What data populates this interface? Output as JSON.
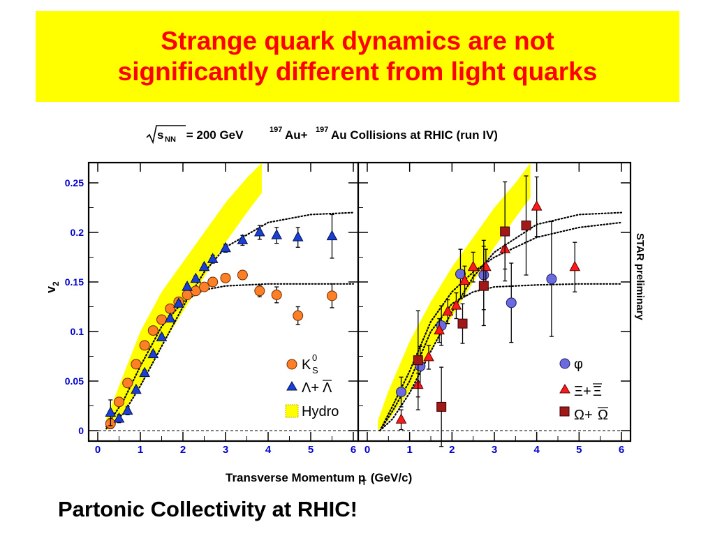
{
  "slide": {
    "title_line1": "Strange quark dynamics are not",
    "title_line2": "significantly different from light quarks",
    "footer": "Partonic Collectivity at RHIC!"
  },
  "colors": {
    "title_bg": "#ffff00",
    "title_text": "#ff0000",
    "tick_label": "#0000cc",
    "hydro": "#ffff00",
    "k0s": "#ff7f27",
    "lambda": "#1a3fd6",
    "phi": "#6b6bdf",
    "xi": "#ff1a1a",
    "omega": "#a01818"
  },
  "chart_data": [
    {
      "type": "scatter",
      "panel": "left",
      "header": {
        "sqrt_symbol": "√",
        "s": "s",
        "nn_sub": "NN",
        "energy": " = 200 GeV ",
        "mass_num": "197",
        "au": "Au+",
        "mass_num2": "197",
        "rest": "Au Collisions at RHIC (run IV)"
      },
      "xlabel_main": "Transverse Momentum p",
      "xlabel_sub": "T",
      "xlabel_unit": " (GeV/c)",
      "ylabel_main": "v",
      "ylabel_sub": "2",
      "xlim": [
        0,
        6
      ],
      "ylim": [
        -0.005,
        0.27
      ],
      "x_ticks": [
        "0",
        "1",
        "2",
        "3",
        "4",
        "5",
        "6"
      ],
      "y_ticks": [
        "0",
        "0.05",
        "0.1",
        "0.15",
        "0.2",
        "0.25"
      ],
      "hydro_band": {
        "x": [
          0.2,
          0.5,
          1.0,
          1.5,
          2.0,
          2.5,
          3.0,
          3.5,
          3.85
        ],
        "lower": [
          0.0,
          0.012,
          0.045,
          0.085,
          0.12,
          0.155,
          0.19,
          0.22,
          0.24
        ],
        "upper": [
          0.012,
          0.045,
          0.1,
          0.14,
          0.17,
          0.2,
          0.23,
          0.255,
          0.27
        ]
      },
      "fit_curves": [
        {
          "x": [
            0.2,
            0.6,
            1.0,
            1.5,
            2.0,
            2.5,
            3.0,
            4.0,
            5.0,
            6.0
          ],
          "y": [
            0.004,
            0.03,
            0.065,
            0.105,
            0.13,
            0.142,
            0.146,
            0.148,
            0.148,
            0.148
          ]
        },
        {
          "x": [
            0.2,
            0.6,
            1.0,
            1.5,
            2.0,
            2.5,
            3.0,
            4.0,
            5.0,
            6.0
          ],
          "y": [
            0.002,
            0.017,
            0.045,
            0.085,
            0.125,
            0.16,
            0.185,
            0.21,
            0.218,
            0.22
          ]
        }
      ],
      "series": [
        {
          "name": "K<sup>0</sup><sub>S</sub>",
          "legend_text": "K",
          "legend_sup": "0",
          "legend_sub": "S",
          "marker": "circle",
          "x": [
            0.3,
            0.5,
            0.7,
            0.9,
            1.1,
            1.3,
            1.5,
            1.7,
            1.9,
            2.1,
            2.3,
            2.5,
            2.7,
            3.0,
            3.4,
            3.8,
            4.2,
            4.7,
            5.5
          ],
          "y": [
            0.007,
            0.029,
            0.048,
            0.067,
            0.086,
            0.101,
            0.112,
            0.123,
            0.13,
            0.137,
            0.141,
            0.145,
            0.15,
            0.154,
            0.157,
            0.141,
            0.137,
            0.116,
            0.136
          ],
          "err": [
            0.005,
            0.004,
            0.004,
            0.003,
            0.003,
            0.003,
            0.003,
            0.003,
            0.003,
            0.003,
            0.003,
            0.003,
            0.003,
            0.003,
            0.004,
            0.006,
            0.008,
            0.009,
            0.012
          ]
        },
        {
          "name": "Λ+Λ̄",
          "legend_text": "Λ+",
          "legend_bar": "Λ",
          "marker": "triangle",
          "x": [
            0.3,
            0.5,
            0.7,
            0.9,
            1.1,
            1.3,
            1.5,
            1.7,
            1.9,
            2.1,
            2.3,
            2.5,
            2.7,
            3.0,
            3.4,
            3.8,
            4.2,
            4.7,
            5.5
          ],
          "y": [
            0.018,
            0.012,
            0.02,
            0.041,
            0.058,
            0.077,
            0.094,
            0.113,
            0.128,
            0.145,
            0.153,
            0.165,
            0.173,
            0.184,
            0.192,
            0.2,
            0.197,
            0.195,
            0.196
          ],
          "err": [
            0.013,
            0.004,
            0.004,
            0.003,
            0.003,
            0.003,
            0.003,
            0.003,
            0.003,
            0.003,
            0.003,
            0.003,
            0.004,
            0.004,
            0.005,
            0.007,
            0.008,
            0.01,
            0.022
          ]
        },
        {
          "name": "Hydro",
          "legend_text": "Hydro",
          "marker": "band"
        }
      ]
    },
    {
      "type": "scatter",
      "panel": "right",
      "side_label": "STAR preliminary",
      "xlim": [
        0,
        6
      ],
      "ylim": [
        -0.005,
        0.27
      ],
      "x_ticks": [
        "0",
        "1",
        "2",
        "3",
        "4",
        "5",
        "6"
      ],
      "hydro_band": {
        "x": [
          0.25,
          0.5,
          1.0,
          1.5,
          2.0,
          2.5,
          3.0,
          3.5,
          3.85
        ],
        "lower": [
          0.0,
          0.01,
          0.04,
          0.08,
          0.115,
          0.15,
          0.185,
          0.215,
          0.235
        ],
        "upper": [
          0.01,
          0.04,
          0.09,
          0.13,
          0.165,
          0.195,
          0.225,
          0.25,
          0.27
        ]
      },
      "fit_curves": [
        {
          "x": [
            0.3,
            0.6,
            1.0,
            1.5,
            2.0,
            2.5,
            3.0,
            4.0,
            5.0,
            6.0
          ],
          "y": [
            0.0,
            0.02,
            0.05,
            0.1,
            0.128,
            0.14,
            0.145,
            0.147,
            0.148,
            0.148
          ]
        },
        {
          "x": [
            0.3,
            0.6,
            1.0,
            1.5,
            2.0,
            2.5,
            3.0,
            4.0,
            5.0,
            6.0
          ],
          "y": [
            0.0,
            0.012,
            0.038,
            0.08,
            0.12,
            0.155,
            0.18,
            0.208,
            0.218,
            0.22
          ]
        },
        {
          "x": [
            0.3,
            0.6,
            1.0,
            1.5,
            2.0,
            2.5,
            3.0,
            4.0,
            5.0,
            6.0
          ],
          "y": [
            0.0,
            0.025,
            0.06,
            0.11,
            0.14,
            0.16,
            0.175,
            0.195,
            0.205,
            0.21
          ]
        }
      ],
      "series": [
        {
          "name": "φ",
          "legend_text": "φ",
          "marker": "circle",
          "x": [
            0.8,
            1.25,
            1.75,
            2.2,
            2.75,
            3.4,
            4.35
          ],
          "y": [
            0.039,
            0.065,
            0.106,
            0.158,
            0.157,
            0.129,
            0.153
          ],
          "err": [
            0.015,
            0.02,
            0.02,
            0.025,
            0.035,
            0.04,
            0.058
          ]
        },
        {
          "name": "Ξ+Ξ̄",
          "legend_text": "Ξ+",
          "legend_bar": "Ξ",
          "marker": "triangle",
          "x": [
            0.8,
            1.2,
            1.45,
            1.7,
            1.9,
            2.1,
            2.3,
            2.5,
            2.8,
            3.25,
            4.0,
            4.9
          ],
          "y": [
            0.011,
            0.046,
            0.074,
            0.101,
            0.12,
            0.126,
            0.151,
            0.165,
            0.165,
            0.183,
            0.226,
            0.165
          ],
          "err": [
            0.01,
            0.012,
            0.012,
            0.012,
            0.012,
            0.013,
            0.015,
            0.015,
            0.018,
            0.02,
            0.03,
            0.025
          ]
        },
        {
          "name": "Ω+Ω̄",
          "legend_text": "Ω+",
          "legend_bar": "Ω",
          "marker": "square",
          "x": [
            1.2,
            1.75,
            2.25,
            2.75,
            3.25,
            3.75
          ],
          "y": [
            0.071,
            0.024,
            0.108,
            0.146,
            0.201,
            0.207
          ],
          "err": [
            0.05,
            0.04,
            0.02,
            0.04,
            0.05,
            0.05
          ]
        }
      ]
    }
  ]
}
